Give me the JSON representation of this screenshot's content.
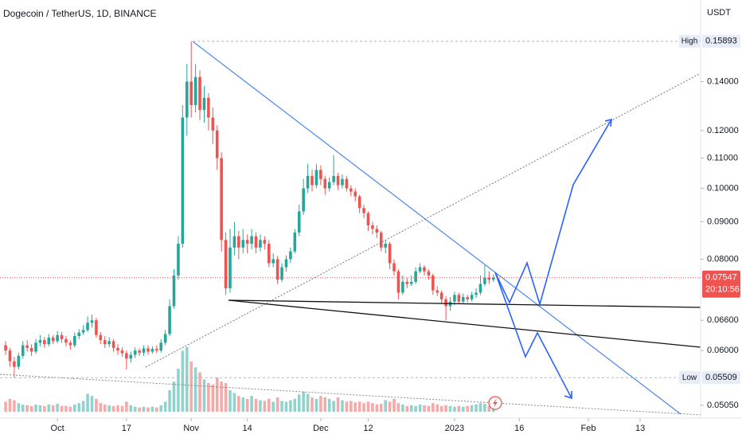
{
  "chart_data": {
    "type": "candlestick",
    "title": "Dogecoin / TetherUS, 1D, BINANCE",
    "currency": "USDT",
    "log": true,
    "grid": false,
    "up_color": "#26a69a",
    "down_color": "#ef5350",
    "xlim": [
      -1.3,
      161
    ],
    "ylim": [
      0.0485,
      0.181
    ],
    "vlim": [
      0,
      100
    ],
    "xticks": [
      {
        "value": 12,
        "label": "Oct"
      },
      {
        "value": 28,
        "label": "17"
      },
      {
        "value": 43,
        "label": "Nov"
      },
      {
        "value": 56,
        "label": "14"
      },
      {
        "value": 73,
        "label": "Dec"
      },
      {
        "value": 84,
        "label": "12"
      },
      {
        "value": 104,
        "label": "2023"
      },
      {
        "value": 119,
        "label": "16"
      },
      {
        "value": 135,
        "label": "Feb"
      },
      {
        "value": 147,
        "label": "13"
      }
    ],
    "yticks": [
      {
        "value": 0.14,
        "label": "0.14000"
      },
      {
        "value": 0.12,
        "label": "0.12000"
      },
      {
        "value": 0.11,
        "label": "0.11000"
      },
      {
        "value": 0.1,
        "label": "0.10000"
      },
      {
        "value": 0.09,
        "label": "0.09000"
      },
      {
        "value": 0.08,
        "label": "0.08000"
      },
      {
        "value": 0.066,
        "label": "0.06600"
      },
      {
        "value": 0.06,
        "label": "0.06000"
      },
      {
        "value": 0.0505,
        "label": "0.05050"
      }
    ],
    "high_marker": {
      "label": "High",
      "value": 0.15893
    },
    "low_marker": {
      "label": "Low",
      "value": 0.05509
    },
    "last_price": {
      "value": 0.07547,
      "countdown": "20:10:56"
    },
    "ohlc": [
      [
        0.061,
        0.0618,
        0.0592,
        0.06
      ],
      [
        0.06,
        0.0605,
        0.057,
        0.058
      ],
      [
        0.058,
        0.0588,
        0.05509,
        0.057
      ],
      [
        0.057,
        0.0596,
        0.0565,
        0.059
      ],
      [
        0.059,
        0.0618,
        0.0585,
        0.061
      ],
      [
        0.061,
        0.062,
        0.0598,
        0.0605
      ],
      [
        0.0605,
        0.0612,
        0.059,
        0.0598
      ],
      [
        0.0598,
        0.0622,
        0.0594,
        0.0615
      ],
      [
        0.0615,
        0.063,
        0.0608,
        0.062
      ],
      [
        0.062,
        0.0626,
        0.0605,
        0.0612
      ],
      [
        0.0612,
        0.0632,
        0.0608,
        0.0625
      ],
      [
        0.0625,
        0.063,
        0.0612,
        0.0618
      ],
      [
        0.0618,
        0.0638,
        0.0614,
        0.063
      ],
      [
        0.063,
        0.0636,
        0.0615,
        0.0622
      ],
      [
        0.0622,
        0.0628,
        0.0608,
        0.0615
      ],
      [
        0.0615,
        0.062,
        0.0602,
        0.061
      ],
      [
        0.061,
        0.0635,
        0.0606,
        0.0628
      ],
      [
        0.0628,
        0.0642,
        0.0622,
        0.0635
      ],
      [
        0.0635,
        0.065,
        0.063,
        0.064
      ],
      [
        0.064,
        0.0668,
        0.0636,
        0.0655
      ],
      [
        0.0655,
        0.0672,
        0.0645,
        0.066
      ],
      [
        0.066,
        0.0665,
        0.0625,
        0.063
      ],
      [
        0.063,
        0.0636,
        0.0612,
        0.062
      ],
      [
        0.062,
        0.0628,
        0.0605,
        0.0612
      ],
      [
        0.0612,
        0.0626,
        0.0606,
        0.0618
      ],
      [
        0.0618,
        0.0622,
        0.0598,
        0.0605
      ],
      [
        0.0605,
        0.0612,
        0.0592,
        0.06
      ],
      [
        0.06,
        0.0606,
        0.0588,
        0.0595
      ],
      [
        0.0595,
        0.06,
        0.0565,
        0.0585
      ],
      [
        0.0585,
        0.0598,
        0.0578,
        0.0592
      ],
      [
        0.0592,
        0.0606,
        0.0586,
        0.06
      ],
      [
        0.06,
        0.0604,
        0.059,
        0.0596
      ],
      [
        0.0596,
        0.061,
        0.059,
        0.0604
      ],
      [
        0.0604,
        0.061,
        0.0592,
        0.0598
      ],
      [
        0.0598,
        0.0608,
        0.0594,
        0.0603
      ],
      [
        0.0603,
        0.061,
        0.0595,
        0.06
      ],
      [
        0.06,
        0.0622,
        0.0596,
        0.0615
      ],
      [
        0.0615,
        0.064,
        0.061,
        0.0632
      ],
      [
        0.0632,
        0.0705,
        0.0628,
        0.069
      ],
      [
        0.069,
        0.0775,
        0.0685,
        0.076
      ],
      [
        0.076,
        0.086,
        0.075,
        0.084
      ],
      [
        0.084,
        0.13,
        0.083,
        0.125
      ],
      [
        0.125,
        0.148,
        0.118,
        0.14
      ],
      [
        0.14,
        0.15893,
        0.125,
        0.13
      ],
      [
        0.13,
        0.148,
        0.127,
        0.142
      ],
      [
        0.142,
        0.145,
        0.124,
        0.128
      ],
      [
        0.128,
        0.138,
        0.123,
        0.133
      ],
      [
        0.133,
        0.135,
        0.12,
        0.125
      ],
      [
        0.125,
        0.129,
        0.115,
        0.12
      ],
      [
        0.12,
        0.122,
        0.106,
        0.11
      ],
      [
        0.11,
        0.112,
        0.082,
        0.085
      ],
      [
        0.085,
        0.087,
        0.0715,
        0.073
      ],
      [
        0.073,
        0.088,
        0.072,
        0.083
      ],
      [
        0.083,
        0.09,
        0.081,
        0.086
      ],
      [
        0.086,
        0.0875,
        0.08,
        0.083
      ],
      [
        0.083,
        0.088,
        0.0815,
        0.085
      ],
      [
        0.085,
        0.0865,
        0.0815,
        0.084
      ],
      [
        0.084,
        0.088,
        0.0825,
        0.086
      ],
      [
        0.086,
        0.087,
        0.0815,
        0.083
      ],
      [
        0.083,
        0.0865,
        0.082,
        0.085
      ],
      [
        0.085,
        0.086,
        0.0825,
        0.084
      ],
      [
        0.084,
        0.085,
        0.078,
        0.079
      ],
      [
        0.079,
        0.0815,
        0.078,
        0.08
      ],
      [
        0.08,
        0.0808,
        0.074,
        0.075
      ],
      [
        0.075,
        0.079,
        0.0745,
        0.078
      ],
      [
        0.078,
        0.081,
        0.077,
        0.08
      ],
      [
        0.08,
        0.083,
        0.079,
        0.082
      ],
      [
        0.082,
        0.088,
        0.0815,
        0.087
      ],
      [
        0.087,
        0.095,
        0.086,
        0.093
      ],
      [
        0.093,
        0.103,
        0.092,
        0.1
      ],
      [
        0.1,
        0.108,
        0.0985,
        0.104
      ],
      [
        0.104,
        0.106,
        0.099,
        0.101
      ],
      [
        0.101,
        0.108,
        0.1,
        0.106
      ],
      [
        0.106,
        0.1075,
        0.101,
        0.103
      ],
      [
        0.103,
        0.104,
        0.098,
        0.1
      ],
      [
        0.1,
        0.1035,
        0.099,
        0.102
      ],
      [
        0.102,
        0.111,
        0.101,
        0.104
      ],
      [
        0.104,
        0.105,
        0.0995,
        0.101
      ],
      [
        0.101,
        0.1045,
        0.1,
        0.103
      ],
      [
        0.103,
        0.104,
        0.099,
        0.1
      ],
      [
        0.1,
        0.101,
        0.0975,
        0.099
      ],
      [
        0.099,
        0.1,
        0.096,
        0.0975
      ],
      [
        0.0975,
        0.098,
        0.0925,
        0.094
      ],
      [
        0.094,
        0.095,
        0.091,
        0.0925
      ],
      [
        0.0925,
        0.093,
        0.0875,
        0.089
      ],
      [
        0.089,
        0.09,
        0.0865,
        0.088
      ],
      [
        0.088,
        0.089,
        0.0855,
        0.087
      ],
      [
        0.087,
        0.0875,
        0.082,
        0.083
      ],
      [
        0.083,
        0.085,
        0.0815,
        0.084
      ],
      [
        0.084,
        0.0845,
        0.0775,
        0.079
      ],
      [
        0.079,
        0.08,
        0.076,
        0.077
      ],
      [
        0.077,
        0.0775,
        0.0705,
        0.072
      ],
      [
        0.072,
        0.076,
        0.0715,
        0.0745
      ],
      [
        0.0745,
        0.0755,
        0.073,
        0.074
      ],
      [
        0.074,
        0.076,
        0.0735,
        0.0745
      ],
      [
        0.0745,
        0.078,
        0.074,
        0.077
      ],
      [
        0.077,
        0.079,
        0.0765,
        0.078
      ],
      [
        0.078,
        0.0785,
        0.076,
        0.077
      ],
      [
        0.077,
        0.0775,
        0.075,
        0.076
      ],
      [
        0.076,
        0.0765,
        0.0715,
        0.0725
      ],
      [
        0.0725,
        0.0735,
        0.0712,
        0.072
      ],
      [
        0.072,
        0.0725,
        0.0695,
        0.0705
      ],
      [
        0.0705,
        0.0712,
        0.066,
        0.069
      ],
      [
        0.069,
        0.071,
        0.068,
        0.07
      ],
      [
        0.07,
        0.0722,
        0.0692,
        0.0715
      ],
      [
        0.0715,
        0.072,
        0.0695,
        0.07
      ],
      [
        0.07,
        0.0718,
        0.0696,
        0.071
      ],
      [
        0.071,
        0.0715,
        0.0698,
        0.0705
      ],
      [
        0.0705,
        0.0722,
        0.07,
        0.0715
      ],
      [
        0.0715,
        0.073,
        0.0708,
        0.072
      ],
      [
        0.072,
        0.076,
        0.0715,
        0.074
      ],
      [
        0.074,
        0.0785,
        0.0735,
        0.0755
      ],
      [
        0.0755,
        0.077,
        0.074,
        0.075
      ],
      [
        0.075,
        0.0762,
        0.0745,
        0.07547
      ]
    ],
    "volume": [
      14,
      18,
      16,
      12,
      10,
      9,
      8,
      10,
      9,
      8,
      10,
      9,
      11,
      8,
      8,
      7,
      10,
      12,
      15,
      25,
      22,
      18,
      12,
      10,
      9,
      8,
      9,
      8,
      14,
      9,
      7,
      6,
      7,
      6,
      7,
      6,
      9,
      14,
      30,
      42,
      60,
      85,
      90,
      70,
      62,
      55,
      45,
      40,
      38,
      48,
      42,
      40,
      30,
      26,
      22,
      20,
      18,
      22,
      18,
      16,
      15,
      18,
      14,
      20,
      15,
      14,
      16,
      18,
      24,
      28,
      25,
      20,
      18,
      22,
      20,
      18,
      15,
      20,
      16,
      14,
      15,
      13,
      14,
      12,
      14,
      12,
      10,
      11,
      16,
      14,
      18,
      12,
      10,
      8,
      9,
      8,
      10,
      9,
      8,
      12,
      10,
      8,
      9,
      8,
      7,
      8,
      7,
      8,
      9,
      10,
      12,
      11,
      8,
      9
    ]
  }
}
